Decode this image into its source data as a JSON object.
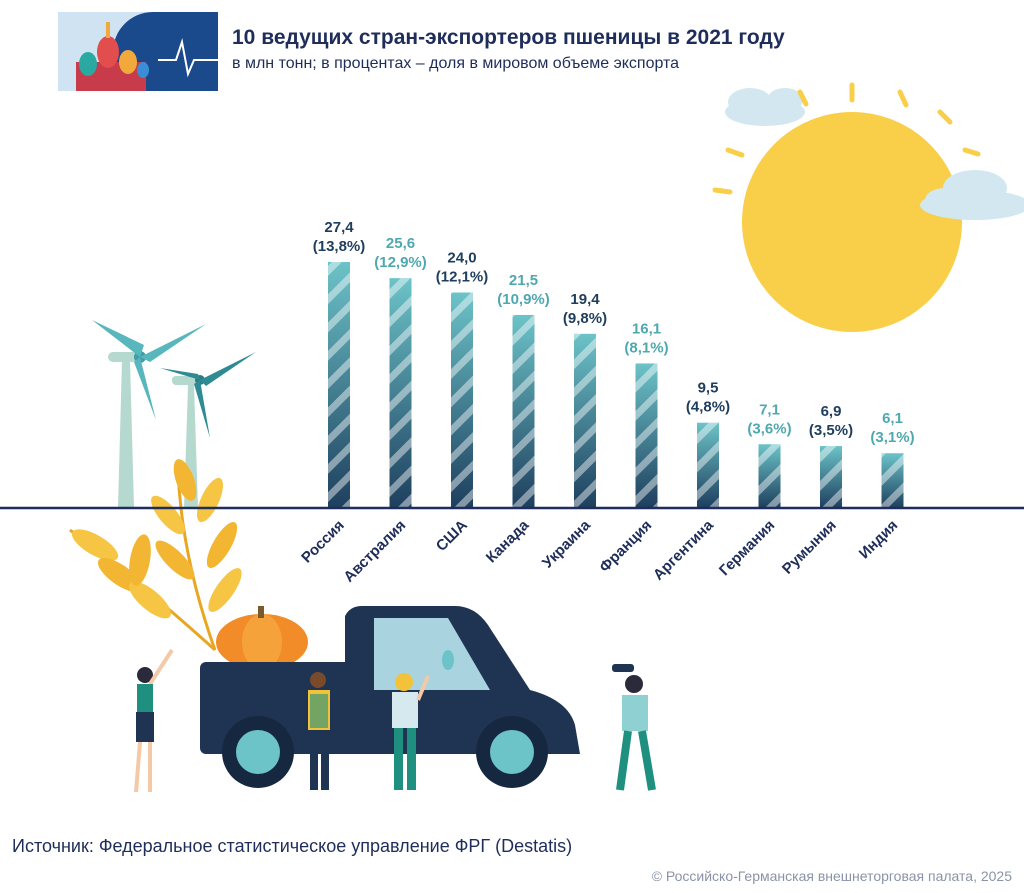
{
  "header": {
    "title": "10 ведущих стран-экспортеров пшеницы в 2021 году",
    "subtitle": "в млн тонн; в процентах – доля в мировом объеме экспорта"
  },
  "footer": {
    "source": "Источник: Федеральное статистическое управление ФРГ (Destatis)",
    "copyright": "© Российско-Германская внешнеторговая палата, 2025"
  },
  "colors": {
    "dark": "#1f3d5c",
    "teal": "#4fa8b0",
    "bar_light": "#6cc3c8",
    "bar_dark": "#1e3f5e",
    "sun": "#f9cf4a",
    "axis": "#1f2d5a"
  },
  "chart_data": {
    "type": "bar",
    "categories": [
      "Россия",
      "Австралия",
      "США",
      "Канада",
      "Украина",
      "Франция",
      "Аргентина",
      "Германия",
      "Румыния",
      "Индия"
    ],
    "values": [
      27.4,
      25.6,
      24.0,
      21.5,
      19.4,
      16.1,
      9.5,
      7.1,
      6.9,
      6.1
    ],
    "value_labels": [
      "27,4",
      "25,6",
      "24,0",
      "21,5",
      "19,4",
      "16,1",
      "9,5",
      "7,1",
      "6,9",
      "6,1"
    ],
    "share_labels": [
      "(13,8%)",
      "(12,9%)",
      "(12,1%)",
      "(10,9%)",
      "(9,8%)",
      "(8,1%)",
      "(4,8%)",
      "(3,6%)",
      "(3,5%)",
      "(3,1%)"
    ],
    "unit": "млн тонн",
    "ylim": [
      0,
      30
    ],
    "grid": false,
    "legend": "none"
  }
}
